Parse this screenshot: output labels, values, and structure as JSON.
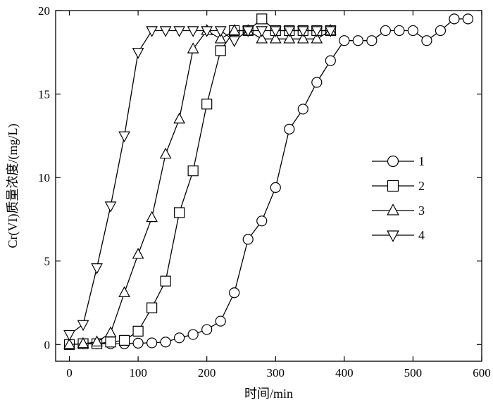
{
  "chart_data": {
    "type": "line",
    "xlabel": "时间/min",
    "ylabel": "Cr(VI)质量浓度/(mg/L)",
    "xlim": [
      -20,
      600
    ],
    "ylim": [
      -1,
      20
    ],
    "xticks": [
      0,
      100,
      200,
      300,
      400,
      500,
      600
    ],
    "yticks": [
      0,
      5,
      10,
      15,
      20
    ],
    "grid": false,
    "legend_position": "center-right",
    "series": [
      {
        "name": "1",
        "marker": "circle",
        "x": [
          0,
          20,
          40,
          60,
          80,
          100,
          120,
          140,
          160,
          180,
          200,
          220,
          240,
          260,
          280,
          300,
          320,
          340,
          360,
          380,
          400,
          420,
          440,
          460,
          480,
          500,
          520,
          540,
          560,
          580
        ],
        "y": [
          0.0,
          0.05,
          0.05,
          0.05,
          0.05,
          0.08,
          0.1,
          0.15,
          0.4,
          0.6,
          0.9,
          1.4,
          3.1,
          6.3,
          7.4,
          9.4,
          12.9,
          14.1,
          15.7,
          17.0,
          18.2,
          18.2,
          18.2,
          18.8,
          18.8,
          18.8,
          18.2,
          18.8,
          19.5,
          19.5
        ]
      },
      {
        "name": "2",
        "marker": "square",
        "x": [
          0,
          20,
          40,
          60,
          80,
          100,
          120,
          140,
          160,
          180,
          200,
          220,
          240,
          260,
          280,
          300,
          320,
          340,
          360,
          380
        ],
        "y": [
          0.0,
          0.05,
          0.05,
          0.15,
          0.25,
          0.8,
          2.2,
          3.8,
          7.9,
          10.4,
          14.4,
          17.6,
          18.8,
          18.8,
          19.5,
          18.8,
          18.8,
          18.8,
          18.8,
          18.8
        ]
      },
      {
        "name": "3",
        "marker": "triangle-up",
        "x": [
          0,
          20,
          40,
          60,
          80,
          100,
          120,
          140,
          160,
          180,
          200,
          220,
          240,
          260,
          280,
          300,
          320,
          340,
          360,
          380
        ],
        "y": [
          0.0,
          0.05,
          0.15,
          0.7,
          3.1,
          5.4,
          7.6,
          11.4,
          13.5,
          17.7,
          18.8,
          18.3,
          18.8,
          18.8,
          18.3,
          18.3,
          18.3,
          18.3,
          18.3,
          18.8
        ]
      },
      {
        "name": "4",
        "marker": "triangle-down",
        "x": [
          0,
          20,
          40,
          60,
          80,
          100,
          120,
          140,
          160,
          180,
          200,
          220,
          240,
          260,
          280,
          300,
          320,
          340,
          360,
          380
        ],
        "y": [
          0.6,
          1.2,
          4.6,
          8.3,
          12.5,
          17.5,
          18.8,
          18.8,
          18.8,
          18.8,
          18.8,
          18.8,
          18.2,
          18.8,
          18.8,
          18.8,
          18.8,
          18.8,
          18.8,
          18.8
        ]
      }
    ]
  }
}
